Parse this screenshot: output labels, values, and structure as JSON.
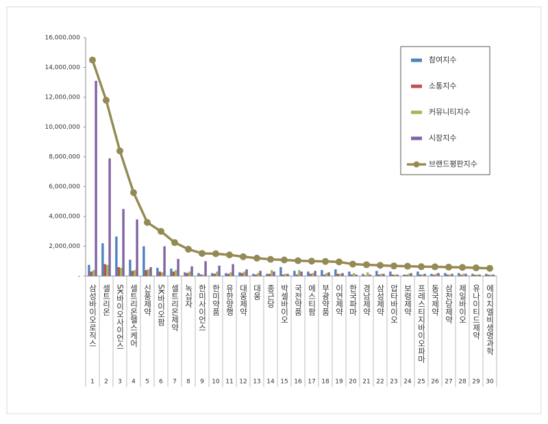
{
  "chart_data": {
    "type": "bar",
    "categories": [
      "삼성바이오로직스",
      "셀트리온",
      "SK바이오사이언스",
      "셀트리온헬스케어",
      "신풍제약",
      "SK바이오팜",
      "셀트리온제약",
      "녹십자",
      "한미사이언스",
      "한미약품",
      "유한양행",
      "대웅제약",
      "대웅",
      "종근당",
      "박셀바이오",
      "국전약품",
      "에스티팜",
      "부광약품",
      "이연제약",
      "한국파마",
      "경남제약",
      "삼성제약",
      "압타바이오",
      "보령제약",
      "프레스티지바이오파마",
      "동국제약",
      "삼천당제약",
      "제일바이오",
      "유나이티드제약",
      "에이치엘비생명과학"
    ],
    "ranks": [
      1,
      2,
      3,
      4,
      5,
      6,
      7,
      8,
      9,
      10,
      11,
      12,
      13,
      14,
      15,
      16,
      17,
      18,
      19,
      20,
      21,
      22,
      23,
      24,
      25,
      26,
      27,
      28,
      29,
      30
    ],
    "series": [
      {
        "name": "참여지수",
        "color": "#4f81bd",
        "values": [
          750000,
          2200000,
          2650000,
          1100000,
          2000000,
          550000,
          500000,
          250000,
          200000,
          200000,
          200000,
          250000,
          150000,
          150000,
          600000,
          350000,
          300000,
          400000,
          450000,
          300000,
          150000,
          350000,
          300000,
          100000,
          300000,
          150000,
          200000,
          200000,
          150000,
          150000
        ]
      },
      {
        "name": "소통지수",
        "color": "#c0504d",
        "values": [
          300000,
          800000,
          600000,
          350000,
          400000,
          300000,
          300000,
          200000,
          100000,
          150000,
          150000,
          200000,
          100000,
          150000,
          100000,
          100000,
          150000,
          100000,
          150000,
          100000,
          50000,
          100000,
          100000,
          80000,
          100000,
          80000,
          100000,
          80000,
          80000,
          80000
        ]
      },
      {
        "name": "커뮤니티지수",
        "color": "#9bbb59",
        "values": [
          400000,
          750000,
          550000,
          400000,
          450000,
          250000,
          400000,
          300000,
          100000,
          300000,
          250000,
          300000,
          200000,
          400000,
          150000,
          400000,
          200000,
          200000,
          150000,
          200000,
          250000,
          150000,
          100000,
          150000,
          100000,
          150000,
          100000,
          150000,
          100000,
          100000
        ]
      },
      {
        "name": "시장지수",
        "color": "#8064a2",
        "values": [
          13100000,
          7900000,
          4500000,
          3800000,
          600000,
          2000000,
          1150000,
          650000,
          1000000,
          700000,
          800000,
          450000,
          350000,
          300000,
          150000,
          300000,
          350000,
          250000,
          200000,
          100000,
          100000,
          150000,
          100000,
          200000,
          150000,
          200000,
          150000,
          150000,
          100000,
          100000
        ]
      },
      {
        "name": "브랜드평판지수",
        "color": "#948a54",
        "type": "line",
        "values": [
          14500000,
          11800000,
          8400000,
          5600000,
          3600000,
          3000000,
          2250000,
          1800000,
          1520000,
          1500000,
          1420000,
          1300000,
          1200000,
          1120000,
          1080000,
          1030000,
          1000000,
          980000,
          950000,
          800000,
          760000,
          720000,
          680000,
          660000,
          630000,
          620000,
          600000,
          580000,
          550000,
          520000
        ]
      }
    ],
    "ylim": [
      0,
      16000000
    ],
    "yticks": [
      {
        "value": 0,
        "label": "-"
      },
      {
        "value": 2000000,
        "label": "2,000,000"
      },
      {
        "value": 4000000,
        "label": "4,000,000"
      },
      {
        "value": 6000000,
        "label": "6,000,000"
      },
      {
        "value": 8000000,
        "label": "8,000,000"
      },
      {
        "value": 10000000,
        "label": "10,000,000"
      },
      {
        "value": 12000000,
        "label": "12,000,000"
      },
      {
        "value": 14000000,
        "label": "14,000,000"
      },
      {
        "value": 16000000,
        "label": "16,000,000"
      }
    ],
    "grid": false,
    "legend": "top-right"
  }
}
